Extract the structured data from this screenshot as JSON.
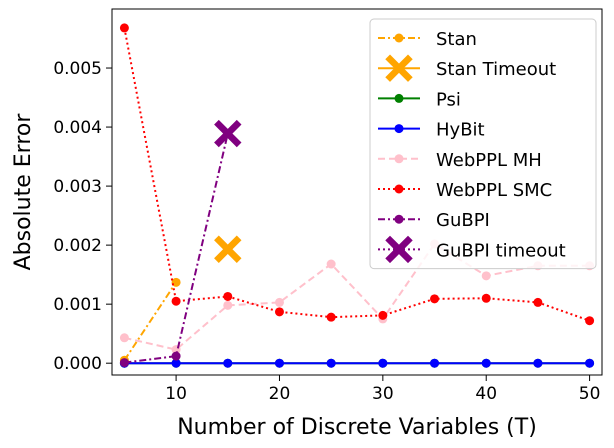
{
  "chart_data": {
    "type": "line",
    "title": "",
    "xlabel": "Number of Discrete Variables (T)",
    "ylabel": "Absolute Error",
    "xlim": [
      3.8,
      51.2
    ],
    "ylim": [
      -0.0002,
      0.006
    ],
    "xticks": [
      10,
      20,
      30,
      40,
      50
    ],
    "yticks": [
      0.0,
      0.001,
      0.002,
      0.003,
      0.004,
      0.005
    ],
    "ytick_labels": [
      "0.000",
      "0.001",
      "0.002",
      "0.003",
      "0.004",
      "0.005"
    ],
    "grid": false,
    "legend_position": "top-right",
    "series": [
      {
        "name": "Stan",
        "color": "#FFA500",
        "line": "dashdot",
        "marker": "circle",
        "points": [
          [
            5,
            5e-05
          ],
          [
            10,
            0.00137
          ]
        ]
      },
      {
        "name": "Stan Timeout",
        "color": "#FFA500",
        "line": "solid",
        "marker": "x",
        "points": [
          [
            15,
            0.00193
          ]
        ]
      },
      {
        "name": "Psi",
        "color": "#008000",
        "line": "solid",
        "marker": "circle",
        "points": [
          [
            5,
            0.0
          ],
          [
            10,
            0.0
          ],
          [
            15,
            0.0
          ],
          [
            20,
            0.0
          ],
          [
            25,
            0.0
          ],
          [
            30,
            0.0
          ],
          [
            35,
            0.0
          ],
          [
            40,
            0.0
          ],
          [
            45,
            0.0
          ],
          [
            50,
            0.0
          ]
        ]
      },
      {
        "name": "HyBit",
        "color": "#0000FF",
        "line": "solid",
        "marker": "circle",
        "points": [
          [
            5,
            0.0
          ],
          [
            10,
            0.0
          ],
          [
            15,
            0.0
          ],
          [
            20,
            0.0
          ],
          [
            25,
            0.0
          ],
          [
            30,
            0.0
          ],
          [
            35,
            0.0
          ],
          [
            40,
            0.0
          ],
          [
            45,
            0.0
          ],
          [
            50,
            0.0
          ]
        ]
      },
      {
        "name": "WebPPL MH",
        "color": "#FFC0CB",
        "line": "dashed",
        "marker": "circle",
        "points": [
          [
            5,
            0.00043
          ],
          [
            10,
            0.00023
          ],
          [
            15,
            0.00098
          ],
          [
            20,
            0.00103
          ],
          [
            25,
            0.00168
          ],
          [
            30,
            0.00075
          ],
          [
            35,
            0.00202
          ],
          [
            40,
            0.00148
          ],
          [
            45,
            0.00165
          ],
          [
            50,
            0.00165
          ]
        ]
      },
      {
        "name": "WebPPL SMC",
        "color": "#FF0000",
        "line": "dotted",
        "marker": "circle",
        "points": [
          [
            5,
            0.00568
          ],
          [
            10,
            0.00105
          ],
          [
            15,
            0.00113
          ],
          [
            20,
            0.00087
          ],
          [
            25,
            0.00078
          ],
          [
            30,
            0.00081
          ],
          [
            35,
            0.00109
          ],
          [
            40,
            0.0011
          ],
          [
            45,
            0.00103
          ],
          [
            50,
            0.00072
          ]
        ]
      },
      {
        "name": "GuBPI",
        "color": "#800080",
        "line": "dashdot",
        "marker": "circle",
        "points": [
          [
            5,
            1e-05
          ],
          [
            10,
            0.00012
          ],
          [
            15,
            0.00389
          ]
        ]
      },
      {
        "name": "GuBPI timeout",
        "color": "#800080",
        "line": "dotted",
        "marker": "x",
        "points": [
          [
            15,
            0.00389
          ]
        ]
      }
    ]
  }
}
